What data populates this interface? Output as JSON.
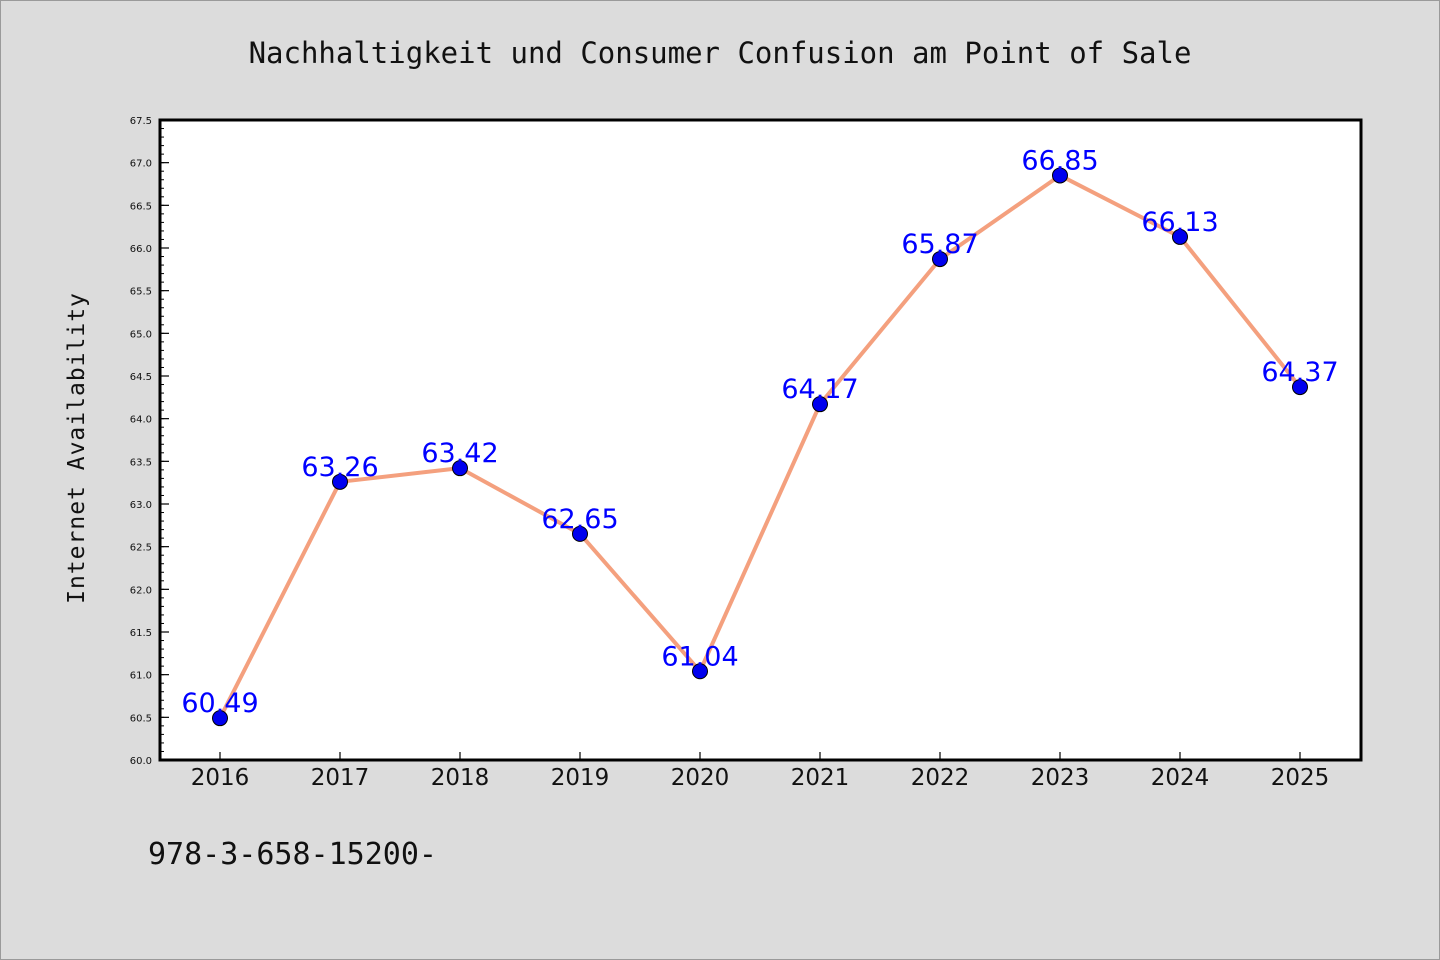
{
  "chart_data": {
    "type": "line",
    "title": "Nachhaltigkeit und Consumer Confusion am Point of Sale",
    "ylabel": "Internet Availability",
    "xlabel": "",
    "categories": [
      "2016",
      "2017",
      "2018",
      "2019",
      "2020",
      "2021",
      "2022",
      "2023",
      "2024",
      "2025"
    ],
    "series": [
      {
        "values": [
          60.49,
          63.26,
          63.42,
          62.65,
          61.04,
          64.17,
          65.87,
          66.85,
          66.13,
          64.37
        ],
        "data_labels": [
          "60.49",
          "63.26",
          "63.42",
          "62.65",
          "61.04",
          "64.17",
          "65.87",
          "66.85",
          "66.13",
          "64.37"
        ],
        "line_color": "#f4a07e",
        "marker_color": "#0000ee"
      }
    ],
    "yticks": [
      "60.0",
      "60.5",
      "61.0",
      "61.5",
      "62.0",
      "62.5",
      "63.0",
      "63.5",
      "64.0",
      "64.5",
      "65.0",
      "65.5",
      "66.0",
      "66.5",
      "67.0",
      "67.5"
    ],
    "ylim": [
      60.0,
      67.5
    ],
    "grid": false,
    "legend": "none",
    "label_color": "#0000ff",
    "footer_text": "978-3-658-15200-"
  }
}
